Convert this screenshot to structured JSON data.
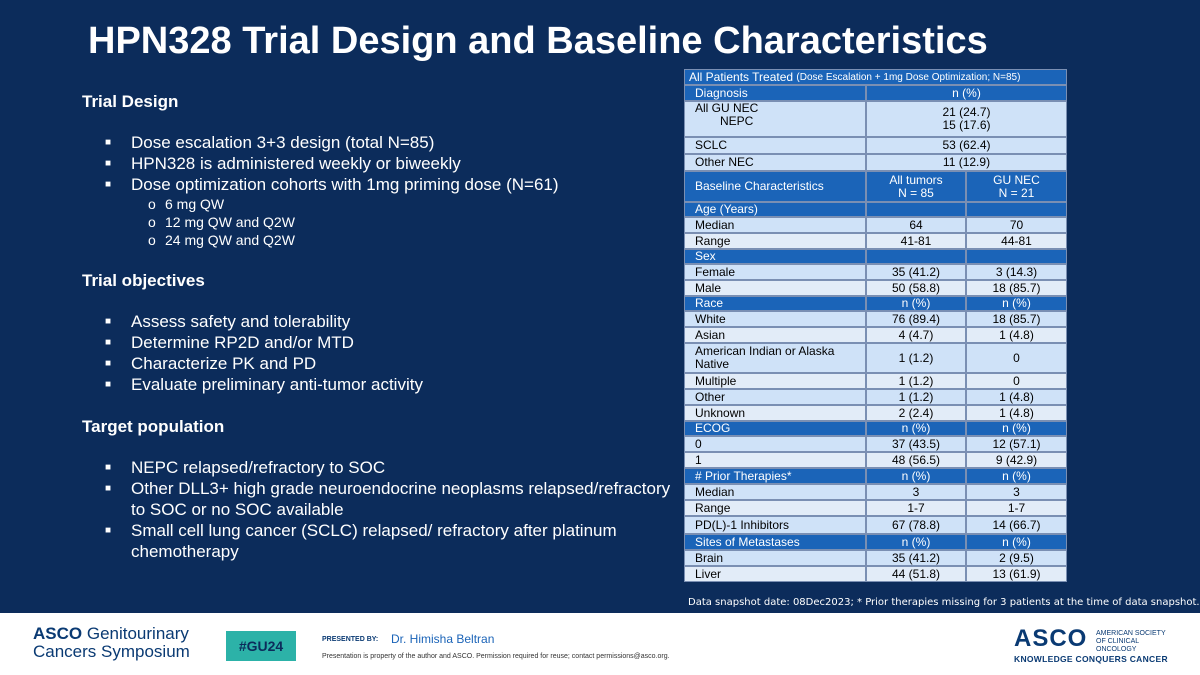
{
  "title": "HPN328 Trial Design and Baseline Characteristics",
  "left": {
    "design_head": "Trial Design",
    "design_bullets": [
      "Dose escalation 3+3 design (total N=85)",
      "HPN328 is administered weekly or biweekly",
      "Dose optimization cohorts with 1mg priming dose (N=61)"
    ],
    "design_sub": [
      "6 mg QW",
      "12 mg QW and Q2W",
      "24 mg QW and Q2W"
    ],
    "objectives_head": "Trial objectives",
    "objectives_bullets": [
      "Assess safety and tolerability",
      "Determine RP2D and/or MTD",
      "Characterize PK and PD",
      "Evaluate preliminary anti-tumor activity"
    ],
    "target_head": "Target population",
    "target_bullets": [
      "NEPC relapsed/refractory to SOC",
      "Other DLL3+ high grade neuroendocrine neoplasms relapsed/refractory to SOC or no SOC available",
      "Small cell lung cancer (SCLC) relapsed/ refractory after platinum chemotherapy"
    ]
  },
  "table": {
    "header_main": "All Patients Treated",
    "header_sub": "(Dose Escalation + 1mg Dose Optimization; N=85)",
    "diag_label": "Diagnosis",
    "diag_n": "n (%)",
    "gu_label": "All GU NEC",
    "gu_val": "21 (24.7)",
    "nepc_label": "NEPC",
    "nepc_val": "15 (17.6)",
    "sclc_label": "SCLC",
    "sclc_val": "53 (62.4)",
    "other_label": "Other NEC",
    "other_val": "11 (12.9)",
    "base_label": "Baseline Characteristics",
    "col2_head1": "All tumors",
    "col2_head2": "N = 85",
    "col3_head1": "GU NEC",
    "col3_head2": "N = 21",
    "age": {
      "label": "Age (Years)",
      "rows": [
        [
          "Median",
          "64",
          "70"
        ],
        [
          "Range",
          "41-81",
          "44-81"
        ]
      ]
    },
    "sex": {
      "label": "Sex",
      "rows": [
        [
          "Female",
          "35 (41.2)",
          "3 (14.3)"
        ],
        [
          "Male",
          "50 (58.8)",
          "18 (85.7)"
        ]
      ]
    },
    "race": {
      "label": "Race",
      "n2": "n (%)",
      "n3": "n (%)",
      "rows": [
        [
          "White",
          "76 (89.4)",
          "18 (85.7)"
        ],
        [
          "Asian",
          "4 (4.7)",
          "1 (4.8)"
        ],
        [
          "American Indian or Alaska Native",
          "1 (1.2)",
          "0"
        ],
        [
          "Multiple",
          "1 (1.2)",
          "0"
        ],
        [
          "Other",
          "1 (1.2)",
          "1 (4.8)"
        ],
        [
          "Unknown",
          "2 (2.4)",
          "1 (4.8)"
        ]
      ]
    },
    "ecog": {
      "label": "ECOG",
      "n2": "n (%)",
      "n3": "n (%)",
      "rows": [
        [
          "0",
          "37 (43.5)",
          "12 (57.1)"
        ],
        [
          "1",
          "48 (56.5)",
          "9 (42.9)"
        ]
      ]
    },
    "prior": {
      "label": "# Prior Therapies*",
      "n2": "n (%)",
      "n3": "n (%)",
      "rows": [
        [
          "Median",
          "3",
          "3"
        ],
        [
          "Range",
          "1-7",
          "1-7"
        ],
        [
          "PD(L)-1 Inhibitors",
          "67 (78.8)",
          "14 (66.7)"
        ]
      ]
    },
    "sites": {
      "label": "Sites of Metastases",
      "n2": "n (%)",
      "n3": "n (%)",
      "rows": [
        [
          "Brain",
          "35 (41.2)",
          "2 (9.5)"
        ],
        [
          "Liver",
          "44 (51.8)",
          "13 (61.9)"
        ]
      ]
    }
  },
  "note": "Data snapshot date: 08Dec2023; * Prior therapies missing for 3 patients at the time of data snapshot.",
  "footer": {
    "logo_line1_bold": "ASCO",
    "logo_line1_rest": " Genitourinary",
    "logo_line2": "Cancers Symposium",
    "tag": "#GU24",
    "presented_by": "PRESENTED BY:",
    "presenter": "Dr. Himisha Beltran",
    "disclaimer": "Presentation is property of the author and ASCO. Permission required for reuse; contact permissions@asco.org.",
    "asco": "ASCO",
    "asco_org": "AMERICAN SOCIETY OF CLINICAL ONCOLOGY",
    "asco_tagline": "KNOWLEDGE CONQUERS CANCER"
  }
}
